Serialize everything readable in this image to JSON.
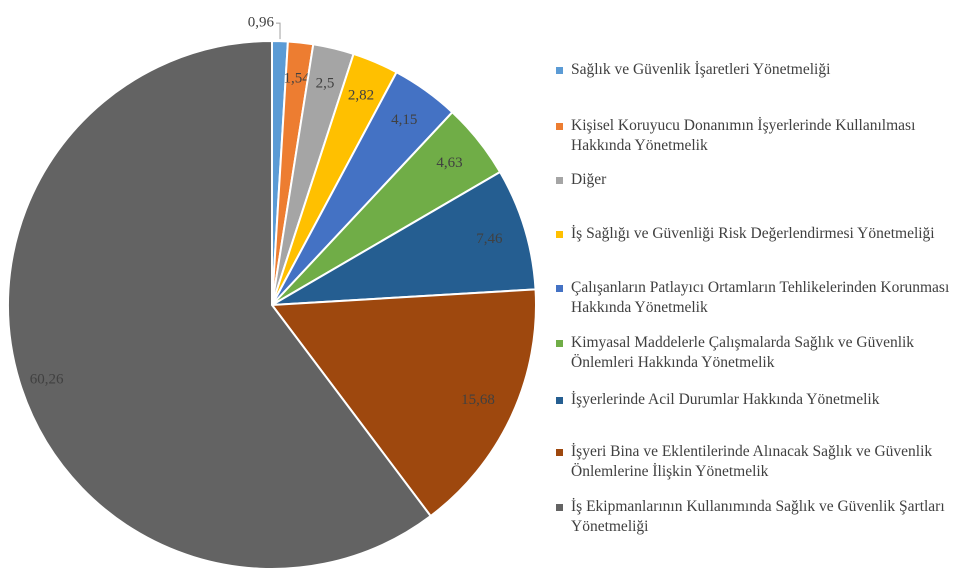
{
  "chart_data": {
    "type": "pie",
    "categories": [
      "Sağlık ve Güvenlik İşaretleri Yönetmeliği",
      "Kişisel Koruyucu Donanımın İşyerlerinde Kullanılması Hakkında Yönetmelik",
      "Diğer",
      "İş Sağlığı ve Güvenliği Risk Değerlendirmesi Yönetmeliği",
      "Çalışanların Patlayıcı Ortamların Tehlikelerinden Korunması Hakkında Yönetmelik",
      "Kimyasal Maddelerle Çalışmalarda Sağlık ve Güvenlik Önlemleri Hakkında Yönetmelik",
      "İşyerlerinde Acil Durumlar Hakkında Yönetmelik",
      "İşyeri Bina ve Eklentilerinde Alınacak Sağlık ve Güvenlik Önlemlerine İlişkin Yönetmelik",
      "İş Ekipmanlarının Kullanımında Sağlık ve Güvenlik Şartları Yönetmeliği"
    ],
    "values": [
      0.96,
      1.54,
      2.5,
      2.82,
      4.15,
      4.63,
      7.46,
      15.68,
      60.26
    ],
    "value_labels": [
      "0,96",
      "1,54",
      "2,5",
      "2,82",
      "4,15",
      "4,63",
      "7,46",
      "15,68",
      "60,26"
    ],
    "colors": [
      "#5b9bd5",
      "#ed7d31",
      "#a5a5a5",
      "#ffc000",
      "#4472c4",
      "#70ad47",
      "#255e91",
      "#9e480e",
      "#636363"
    ],
    "legend": "right"
  }
}
